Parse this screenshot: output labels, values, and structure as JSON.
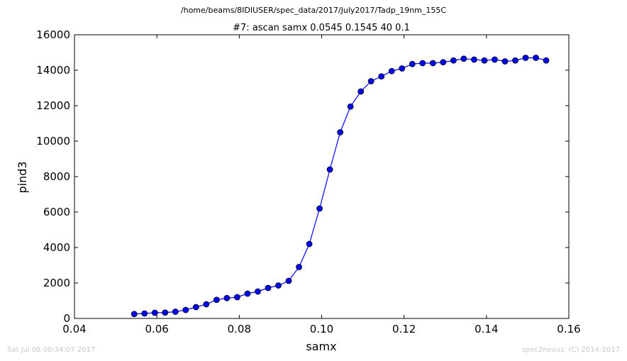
{
  "header": {
    "file_path": "/home/beams/8IDIUSER/spec_data/2017/July2017/Tadp_19nm_155C"
  },
  "footer": {
    "timestamp": "Sat Jul 08 00:34:07 2017",
    "credit": "spec2nexus, (C) 2014-2017"
  },
  "colors": {
    "series": "#0000ff",
    "footer_text": "#c8c8c8"
  },
  "chart_data": {
    "type": "line",
    "title": "#7: ascan  samx 0.0545 0.1545  40 0.1",
    "xlabel": "samx",
    "ylabel": "pind3",
    "xlim": [
      0.04,
      0.16
    ],
    "ylim": [
      0,
      16000
    ],
    "xticks": [
      "0.04",
      "0.06",
      "0.08",
      "0.10",
      "0.12",
      "0.14",
      "0.16"
    ],
    "yticks": [
      "0",
      "2000",
      "4000",
      "6000",
      "8000",
      "10000",
      "12000",
      "14000",
      "16000"
    ],
    "grid": false,
    "markers": "circle",
    "series": [
      {
        "x": [
          0.0545,
          0.057,
          0.0595,
          0.062,
          0.0645,
          0.067,
          0.0695,
          0.072,
          0.0745,
          0.077,
          0.0795,
          0.082,
          0.0845,
          0.087,
          0.0895,
          0.092,
          0.0945,
          0.097,
          0.0995,
          0.102,
          0.1045,
          0.107,
          0.1095,
          0.112,
          0.1145,
          0.117,
          0.1195,
          0.122,
          0.1245,
          0.127,
          0.1295,
          0.132,
          0.1345,
          0.137,
          0.1395,
          0.142,
          0.1445,
          0.147,
          0.1495,
          0.152,
          0.1545
        ],
        "y": [
          250,
          280,
          320,
          330,
          380,
          480,
          640,
          800,
          1050,
          1150,
          1200,
          1400,
          1520,
          1720,
          1860,
          2120,
          2900,
          4200,
          6200,
          8400,
          10500,
          11950,
          12800,
          13380,
          13650,
          13950,
          14100,
          14350,
          14400,
          14400,
          14450,
          14550,
          14650,
          14600,
          14550,
          14600,
          14500,
          14550,
          14700,
          14700,
          14550
        ]
      }
    ]
  }
}
